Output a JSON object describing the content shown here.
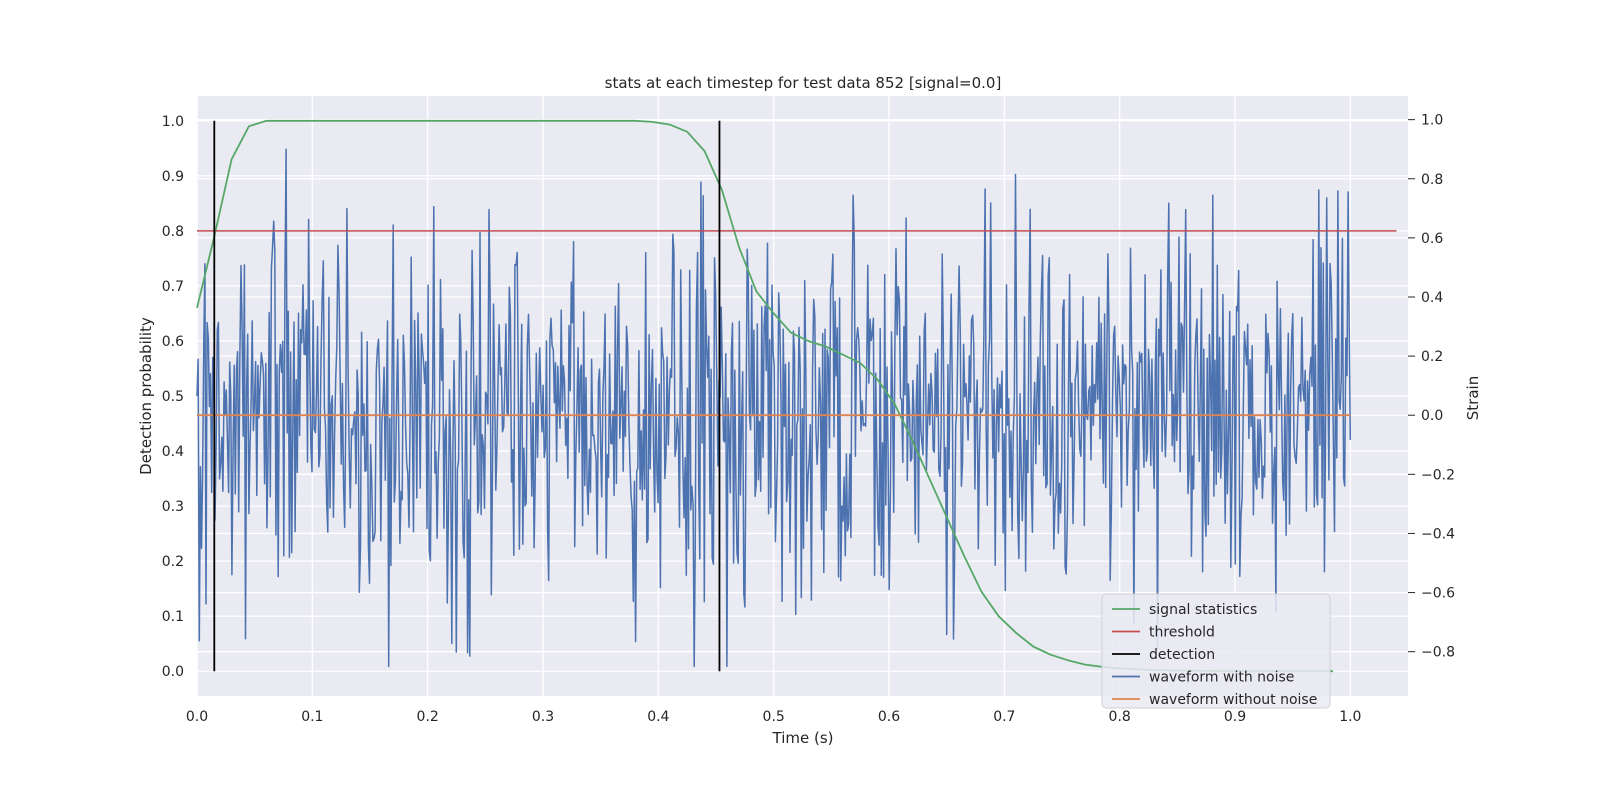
{
  "chart_data": {
    "type": "line",
    "title": "stats at each timestep for test data 852 [signal=0.0]",
    "xlabel": "Time (s)",
    "ylabel_left": "Detection probability",
    "ylabel_right": "Strain",
    "xlim": [
      0.0,
      1.05
    ],
    "ylim_left": [
      -0.045,
      1.045
    ],
    "ylim_right": [
      -0.95,
      1.08
    ],
    "x_ticks": [
      0.0,
      0.1,
      0.2,
      0.3,
      0.4,
      0.5,
      0.6,
      0.7,
      0.8,
      0.9,
      1.0
    ],
    "x_tick_labels": [
      "0.0",
      "0.1",
      "0.2",
      "0.3",
      "0.4",
      "0.5",
      "0.6",
      "0.7",
      "0.8",
      "0.9",
      "1.0"
    ],
    "y_left_ticks": [
      0.0,
      0.1,
      0.2,
      0.3,
      0.4,
      0.5,
      0.6,
      0.7,
      0.8,
      0.9,
      1.0
    ],
    "y_left_tick_labels": [
      "0.0",
      "0.1",
      "0.2",
      "0.3",
      "0.4",
      "0.5",
      "0.6",
      "0.7",
      "0.8",
      "0.9",
      "1.0"
    ],
    "y_right_ticks": [
      -0.8,
      -0.6,
      -0.4,
      -0.2,
      0.0,
      0.2,
      0.4,
      0.6,
      0.8,
      1.0
    ],
    "y_right_tick_labels": [
      "−0.8",
      "−0.6",
      "−0.4",
      "−0.2",
      "0.0",
      "0.2",
      "0.4",
      "0.6",
      "0.8",
      "1.0"
    ],
    "grid": true,
    "legend_position": "lower-right",
    "series": [
      {
        "name": "signal statistics",
        "axis": "left",
        "color": "#55a868",
        "x": [
          0.0,
          0.015,
          0.03,
          0.045,
          0.06,
          0.075,
          0.1,
          0.2,
          0.3,
          0.38,
          0.395,
          0.41,
          0.425,
          0.44,
          0.455,
          0.47,
          0.485,
          0.5,
          0.515,
          0.53,
          0.545,
          0.56,
          0.575,
          0.59,
          0.605,
          0.62,
          0.635,
          0.65,
          0.665,
          0.68,
          0.695,
          0.71,
          0.725,
          0.74,
          0.755,
          0.77,
          0.785,
          0.8,
          0.83,
          0.86,
          0.9,
          0.95,
          0.985
        ],
        "y": [
          0.66,
          0.79,
          0.93,
          0.99,
          1.0,
          1.0,
          1.0,
          1.0,
          1.0,
          1.0,
          0.998,
          0.993,
          0.98,
          0.945,
          0.875,
          0.77,
          0.69,
          0.65,
          0.615,
          0.6,
          0.59,
          0.575,
          0.56,
          0.53,
          0.485,
          0.42,
          0.35,
          0.28,
          0.21,
          0.145,
          0.1,
          0.07,
          0.045,
          0.03,
          0.02,
          0.012,
          0.008,
          0.005,
          0.002,
          0.001,
          0.0,
          0.0,
          0.0
        ]
      },
      {
        "name": "threshold",
        "axis": "left",
        "color": "#c44e52",
        "x": [
          0.0,
          1.04
        ],
        "y": [
          0.8,
          0.8
        ]
      },
      {
        "name": "waveform with noise",
        "axis": "right",
        "color": "#4c72b0",
        "x_start": 0.0,
        "x_end": 1.0,
        "points": 1024,
        "y_range": [
          -0.85,
          1.0
        ],
        "y_std": 0.3
      },
      {
        "name": "waveform without noise",
        "axis": "right",
        "color": "#dd8452",
        "x": [
          0.0,
          1.0
        ],
        "y": [
          0.0,
          0.0
        ]
      }
    ],
    "detections": {
      "name": "detection",
      "color": "#000000",
      "x": [
        0.015,
        0.453
      ],
      "y_range": [
        0.0,
        1.0
      ]
    },
    "legend": [
      {
        "label": "signal statistics",
        "color": "#55a868"
      },
      {
        "label": "threshold",
        "color": "#c44e52"
      },
      {
        "label": "detection",
        "color": "#000000"
      },
      {
        "label": "waveform with noise",
        "color": "#4c72b0"
      },
      {
        "label": "waveform without noise",
        "color": "#dd8452"
      }
    ]
  }
}
